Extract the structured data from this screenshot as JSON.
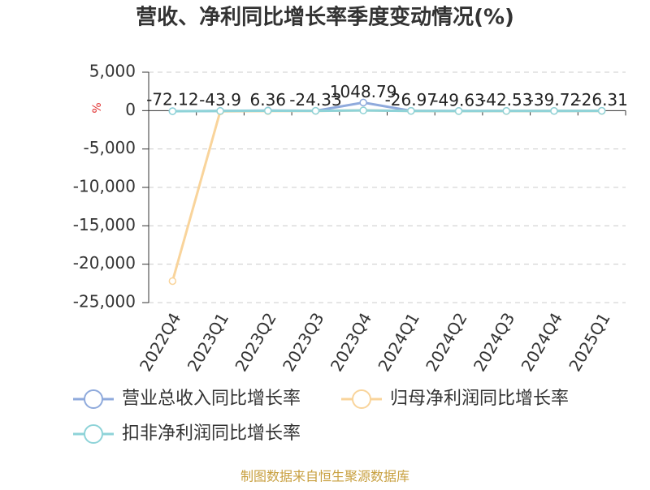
{
  "chart_data": {
    "type": "line",
    "title": "营收、净利同比增长率季度变动情况(%)",
    "y_label": "%",
    "y_label_color": "#e03030",
    "categories": [
      "2022Q4",
      "2023Q1",
      "2023Q2",
      "2023Q3",
      "2023Q4",
      "2024Q1",
      "2024Q2",
      "2024Q3",
      "2024Q4",
      "2025Q1"
    ],
    "series": [
      {
        "name": "营业总收入同比增长率",
        "color": "#8faadc",
        "values": [
          -72.12,
          -43.9,
          6.36,
          -24.33,
          1048.79,
          -26.97,
          -49.63,
          -42.53,
          -39.72,
          -26.31
        ],
        "show_labels": true
      },
      {
        "name": "归母净利润同比增长率",
        "color": "#f9d49b",
        "values": [
          -22200,
          -100,
          -60,
          -40,
          30,
          -50,
          -70,
          -60,
          -50,
          -40
        ],
        "show_labels": false
      },
      {
        "name": "扣非净利润同比增长率",
        "color": "#8ed3d8",
        "values": [
          -80,
          -50,
          -20,
          -30,
          20,
          -40,
          -60,
          -50,
          -45,
          -30
        ],
        "show_labels": false
      }
    ],
    "ylim": [
      -25000,
      5000
    ],
    "yticks": [
      {
        "value": 5000,
        "label": "5,000"
      },
      0,
      {
        "value": -5000,
        "label": "-5,000"
      },
      {
        "value": -10000,
        "label": "-10,000"
      },
      {
        "value": -15000,
        "label": "-15,000"
      },
      {
        "value": -20000,
        "label": "-20,000"
      },
      {
        "value": -25000,
        "label": "-25,000"
      }
    ],
    "grid": true,
    "footer": "制图数据来自恒生聚源数据库",
    "footer_color": "#c8a040"
  }
}
